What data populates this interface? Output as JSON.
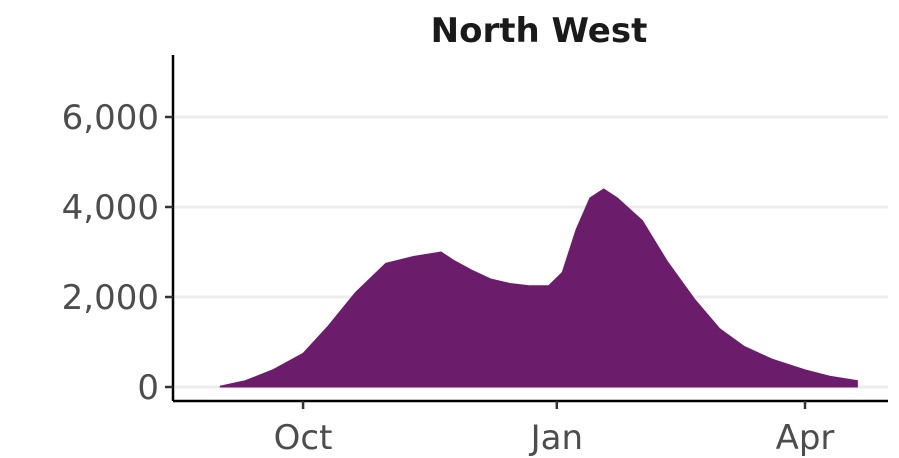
{
  "chart_data": {
    "type": "area",
    "title": "North West",
    "xlabel": "",
    "ylabel": "",
    "x_ticks": [
      "Oct",
      "Jan",
      "Apr"
    ],
    "y_ticks": [
      "0",
      "2,000",
      "4,000",
      "6,000"
    ],
    "ylim": [
      0,
      7200
    ],
    "grid": "horizontal major gridlines",
    "legend": "none",
    "fill_color": "#6b1d6b",
    "x": [
      "2020-09-01",
      "2020-09-10",
      "2020-09-20",
      "2020-10-01",
      "2020-10-10",
      "2020-10-20",
      "2020-10-31",
      "2020-11-10",
      "2020-11-20",
      "2020-11-25",
      "2020-12-01",
      "2020-12-08",
      "2020-12-15",
      "2020-12-22",
      "2020-12-29",
      "2021-01-03",
      "2021-01-08",
      "2021-01-13",
      "2021-01-18",
      "2021-01-23",
      "2021-02-01",
      "2021-02-10",
      "2021-02-20",
      "2021-03-01",
      "2021-03-10",
      "2021-03-20",
      "2021-04-01",
      "2021-04-10",
      "2021-04-20"
    ],
    "values": [
      20,
      140,
      380,
      750,
      1350,
      2100,
      2750,
      2900,
      3000,
      2800,
      2600,
      2400,
      2300,
      2250,
      2250,
      2550,
      3500,
      4200,
      4400,
      4200,
      3700,
      2800,
      1950,
      1300,
      900,
      620,
      380,
      240,
      140
    ]
  }
}
